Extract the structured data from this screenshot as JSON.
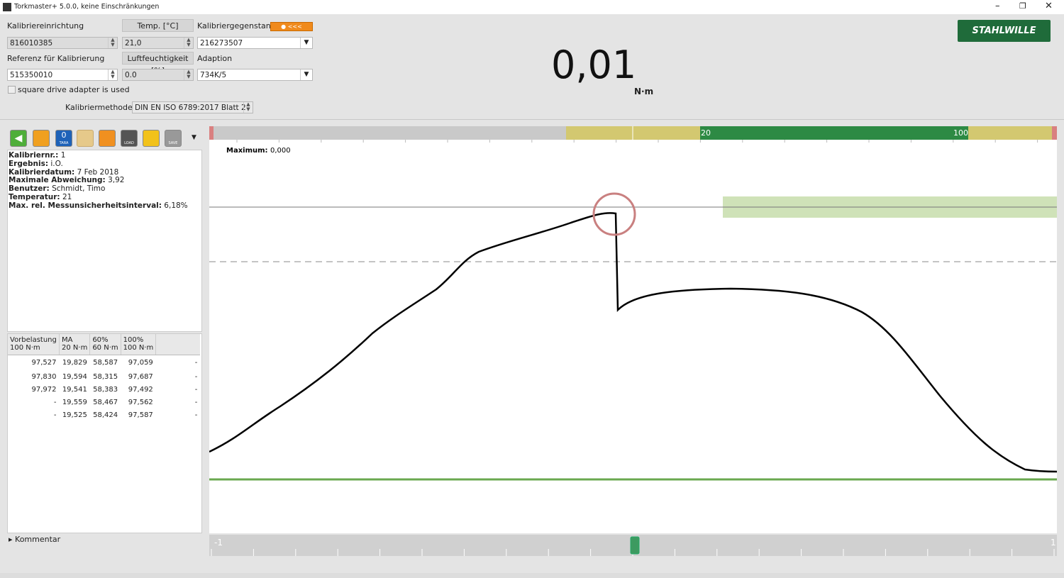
{
  "window": {
    "title": "Torkmaster+  5.0.0, keine Einschränkungen"
  },
  "form": {
    "device_label": "Kalibriereinrichtung",
    "device_value": "816010385",
    "temp_button": "Temp. [°C]",
    "temp_value": "21,0",
    "object_label": "Kalibriergegenstand",
    "object_value": "216273507",
    "reference_label": "Referenz für Kalibrierung",
    "reference_value": "515350010",
    "humidity_button": "Luftfeuchtigkeit [%]",
    "humidity_value": "0.0",
    "adaption_label": "Adaption",
    "adaption_value": "734K/5",
    "square_drive": "square drive adapter is used",
    "method_label": "Kalibriermethode",
    "method_value": "DIN EN ISO 6789:2017 Blatt 2"
  },
  "display": {
    "value": "0,01",
    "unit": "N·m"
  },
  "logo": "STAHLWILLE",
  "toolbar": {
    "tara_digit": "0",
    "tara": "TARA",
    "load": "LOAD",
    "save": "SAVE"
  },
  "info": [
    {
      "label": "Kalibriernr.:",
      "value": "1"
    },
    {
      "label": "Ergebnis:",
      "value": "i.O."
    },
    {
      "label": "Kalibrierdatum:",
      "value": "7 Feb 2018"
    },
    {
      "label": "Maximale Abweichung:",
      "value": "3,92"
    },
    {
      "label": "Benutzer:",
      "value": "Schmidt, Timo"
    },
    {
      "label": "Temperatur:",
      "value": "21"
    },
    {
      "label": "Max. rel. Messunsicherheitsinterval:",
      "value": "6,18%"
    }
  ],
  "table": {
    "header": [
      [
        "Vorbelastung",
        "100 N·m"
      ],
      [
        "MA",
        "20 N·m"
      ],
      [
        "60%",
        "60 N·m"
      ],
      [
        "100%",
        "100 N·m"
      ]
    ],
    "rows": [
      [
        "97,527",
        "19,829",
        "58,587",
        "97,059",
        "-"
      ],
      [
        "97,830",
        "19,594",
        "58,315",
        "97,687",
        "-"
      ],
      [
        "97,972",
        "19,541",
        "58,383",
        "97,492",
        "-"
      ],
      [
        "-",
        "19,559",
        "58,467",
        "97,562",
        "-"
      ],
      [
        "-",
        "19,525",
        "58,424",
        "97,587",
        "-"
      ]
    ]
  },
  "comment": "Kommentar",
  "graph": {
    "scale_low": "20",
    "scale_high": "100",
    "maximum_label": "Maximum:",
    "maximum_value": "0,000",
    "slider_min": "-1",
    "slider_max": "1"
  }
}
